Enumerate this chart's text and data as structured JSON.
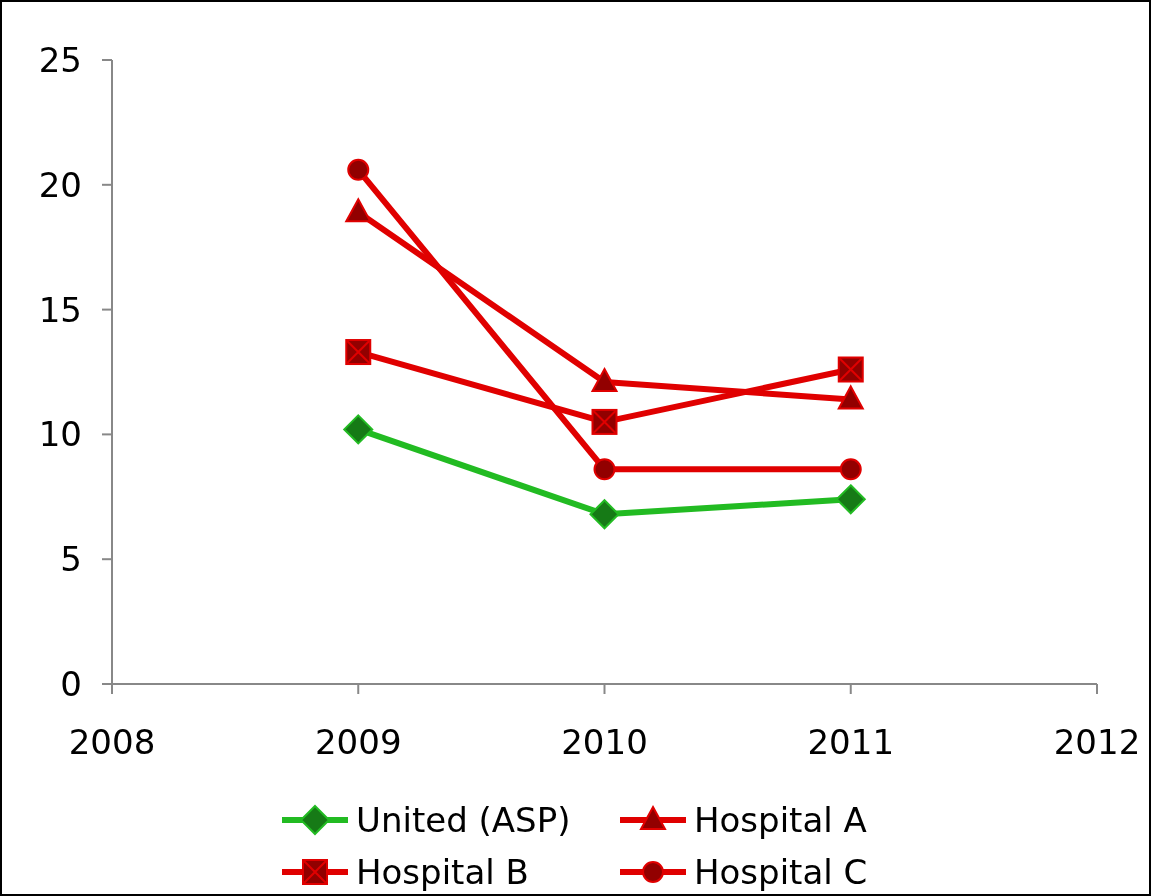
{
  "chart_data": {
    "type": "line",
    "x": [
      2009,
      2010,
      2011
    ],
    "xlim": [
      2008,
      2012
    ],
    "xticks": [
      2008,
      2009,
      2010,
      2011,
      2012
    ],
    "ylim": [
      0,
      25
    ],
    "yticks": [
      0,
      5,
      10,
      15,
      20,
      25
    ],
    "grid": false,
    "legend": "bottom",
    "line_style": "solid",
    "series": [
      {
        "name": "United (ASP)",
        "color": "#22bb22",
        "marker": "diamond",
        "values": [
          10.2,
          6.8,
          7.4
        ]
      },
      {
        "name": "Hospital A",
        "color": "#e00000",
        "marker": "triangle",
        "values": [
          18.9,
          12.1,
          11.4
        ]
      },
      {
        "name": "Hospital B",
        "color": "#e00000",
        "marker": "square",
        "values": [
          13.3,
          10.5,
          12.6
        ]
      },
      {
        "name": "Hospital C",
        "color": "#e00000",
        "marker": "circle",
        "values": [
          20.6,
          8.6,
          8.6
        ]
      }
    ]
  }
}
